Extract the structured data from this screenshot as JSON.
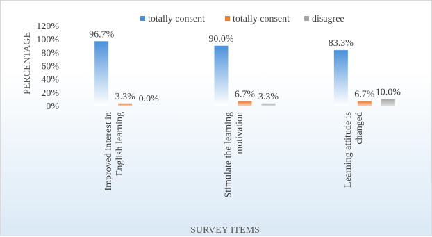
{
  "chart_data": {
    "type": "bar",
    "title": "",
    "xlabel": "SURVEY ITEMS",
    "ylabel": "PERCENTAGE",
    "ylim": [
      0,
      120
    ],
    "ytick_step": 20,
    "ytick_format": "percent",
    "grid": false,
    "legend_position": "top",
    "categories": [
      [
        "Improved interest in",
        "English learning"
      ],
      [
        "Stimulate the learning",
        "motivation"
      ],
      [
        "Learning attitude is",
        "changed"
      ]
    ],
    "series": [
      {
        "name": "totally consent",
        "color": "#4a90d9",
        "values": [
          96.7,
          90.0,
          83.3
        ],
        "labels": [
          "96.7%",
          "90.0%",
          "83.3%"
        ]
      },
      {
        "name": "totally consent",
        "color": "#ed7d31",
        "values": [
          3.3,
          6.7,
          6.7
        ],
        "labels": [
          "3.3%",
          "6.7%",
          "6.7%"
        ]
      },
      {
        "name": "disagree",
        "color": "#a5a5a5",
        "values": [
          0.0,
          3.3,
          10.0
        ],
        "labels": [
          "0.0%",
          "3.3%",
          "10.0%"
        ]
      }
    ]
  }
}
